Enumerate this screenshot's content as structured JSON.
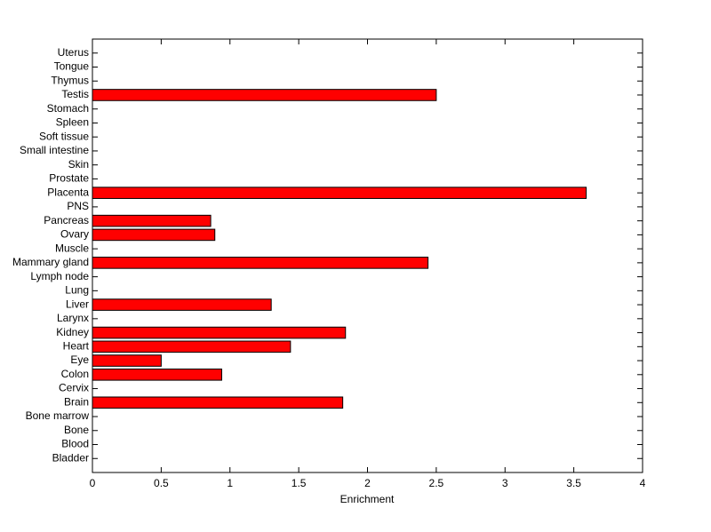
{
  "chart_data": {
    "type": "barh",
    "xlabel": "Enrichment",
    "categories": [
      "Bladder",
      "Blood",
      "Bone",
      "Bone marrow",
      "Brain",
      "Cervix",
      "Colon",
      "Eye",
      "Heart",
      "Kidney",
      "Larynx",
      "Liver",
      "Lung",
      "Lymph node",
      "Mammary gland",
      "Muscle",
      "Ovary",
      "Pancreas",
      "PNS",
      "Placenta",
      "Prostate",
      "Skin",
      "Small intestine",
      "Soft tissue",
      "Spleen",
      "Stomach",
      "Testis",
      "Thymus",
      "Tongue",
      "Uterus"
    ],
    "values": [
      0,
      0,
      0,
      0,
      1.82,
      0,
      0.94,
      0.5,
      1.44,
      1.84,
      0,
      1.3,
      0,
      0,
      2.44,
      0,
      0.89,
      0.86,
      0,
      3.59,
      0,
      0,
      0,
      0,
      0,
      0,
      2.5,
      0,
      0,
      0
    ],
    "color": "#ff0000",
    "xlim": [
      0,
      4
    ],
    "xticks": [
      0,
      0.5,
      1,
      1.5,
      2,
      2.5,
      3,
      3.5,
      4
    ]
  }
}
